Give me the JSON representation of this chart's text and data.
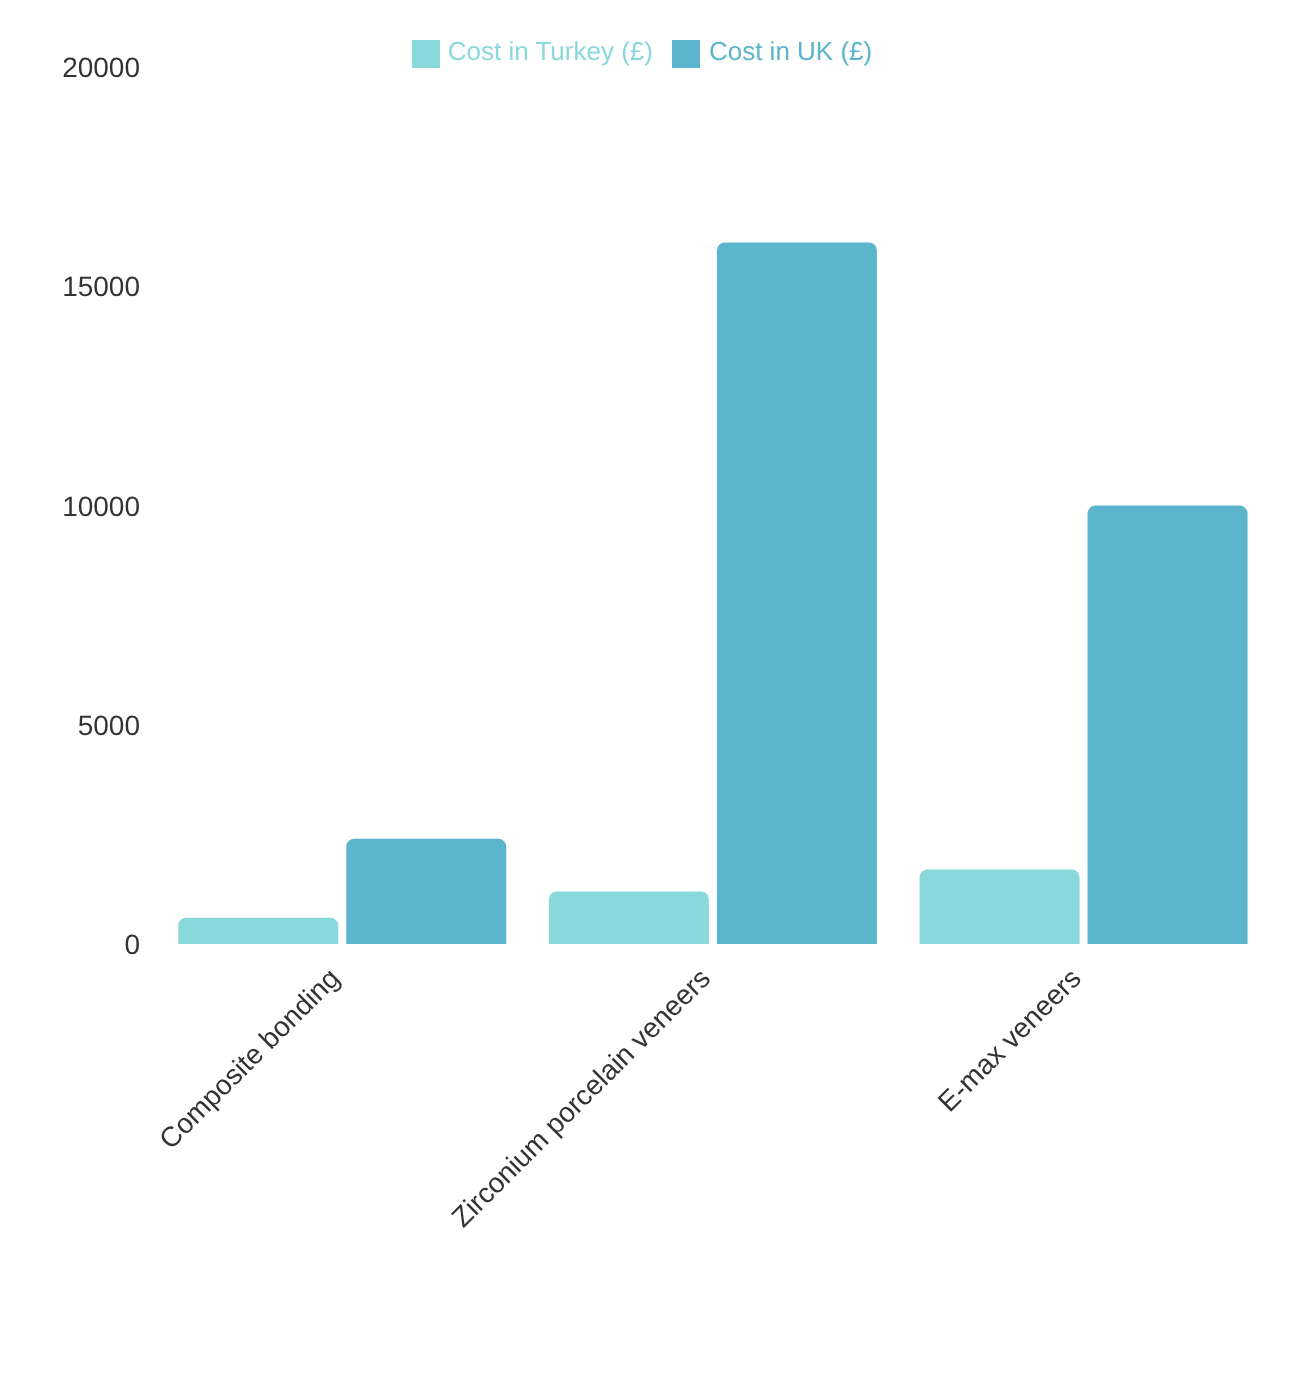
{
  "chart_data": {
    "type": "bar",
    "categories": [
      "Composite bonding",
      "Zirconium porcelain veneers",
      "E-max veneers"
    ],
    "series": [
      {
        "name": "Cost in Turkey (£)",
        "color": "#88d8dc",
        "values": [
          600,
          1200,
          1700
        ]
      },
      {
        "name": "Cost in UK (£)",
        "color": "#5bb5cc",
        "values": [
          2400,
          16000,
          10000
        ]
      }
    ],
    "ylim": [
      0,
      20000
    ],
    "yticks": [
      0,
      5000,
      10000,
      15000,
      20000
    ],
    "grid": false,
    "legend": "top"
  }
}
